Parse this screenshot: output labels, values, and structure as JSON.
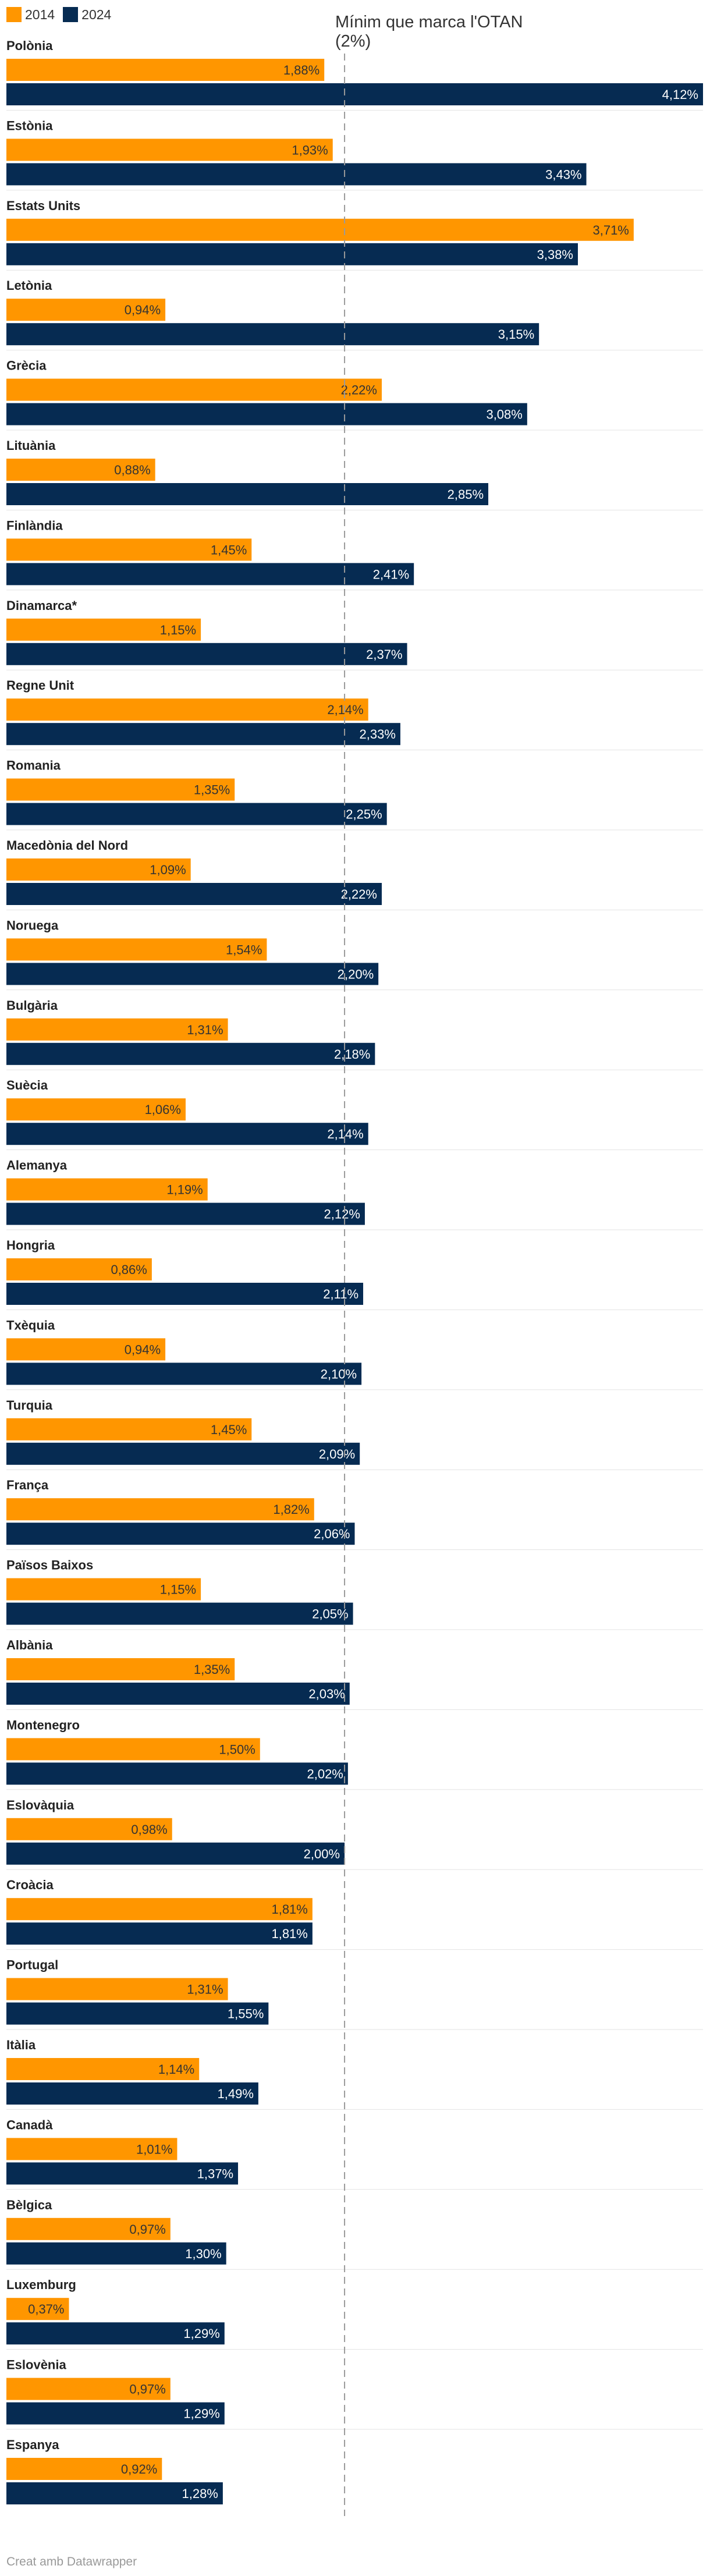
{
  "legend": [
    {
      "label": "2014",
      "color": "#ff9600"
    },
    {
      "label": "2024",
      "color": "#062b52"
    }
  ],
  "annotation": "Mínim que marca l'OTAN (2%)",
  "footer": "Creat amb Datawrapper",
  "chart_data": {
    "type": "bar",
    "orientation": "horizontal",
    "reference_line": {
      "value": 2.0,
      "label": "Mínim que marca l'OTAN (2%)",
      "style": "dashed"
    },
    "xlim": [
      0,
      4.12
    ],
    "grid": false,
    "legend_position": "top-left",
    "categories": [
      "Polònia",
      "Estònia",
      "Estats Units",
      "Letònia",
      "Grècia",
      "Lituània",
      "Finlàndia",
      "Dinamarca*",
      "Regne Unit",
      "Romania",
      "Macedònia del Nord",
      "Noruega",
      "Bulgària",
      "Suècia",
      "Alemanya",
      "Hongria",
      "Txèquia",
      "Turquia",
      "França",
      "Països Baixos",
      "Albània",
      "Montenegro",
      "Eslovàquia",
      "Croàcia",
      "Portugal",
      "Itàlia",
      "Canadà",
      "Bèlgica",
      "Luxemburg",
      "Eslovènia",
      "Espanya"
    ],
    "series": [
      {
        "name": "2014",
        "color": "#ff9600",
        "values": [
          1.88,
          1.93,
          3.71,
          0.94,
          2.22,
          0.88,
          1.45,
          1.15,
          2.14,
          1.35,
          1.09,
          1.54,
          1.31,
          1.06,
          1.19,
          0.86,
          0.94,
          1.45,
          1.82,
          1.15,
          1.35,
          1.5,
          0.98,
          1.81,
          1.31,
          1.14,
          1.01,
          0.97,
          0.37,
          0.97,
          0.92
        ],
        "labels": [
          "1,88%",
          "1,93%",
          "3,71%",
          "0,94%",
          "2,22%",
          "0,88%",
          "1,45%",
          "1,15%",
          "2,14%",
          "1,35%",
          "1,09%",
          "1,54%",
          "1,31%",
          "1,06%",
          "1,19%",
          "0,86%",
          "0,94%",
          "1,45%",
          "1,82%",
          "1,15%",
          "1,35%",
          "1,50%",
          "0,98%",
          "1,81%",
          "1,31%",
          "1,14%",
          "1,01%",
          "0,97%",
          "0,37%",
          "0,97%",
          "0,92%"
        ]
      },
      {
        "name": "2024",
        "color": "#062b52",
        "values": [
          4.12,
          3.43,
          3.38,
          3.15,
          3.08,
          2.85,
          2.41,
          2.37,
          2.33,
          2.25,
          2.22,
          2.2,
          2.18,
          2.14,
          2.12,
          2.11,
          2.1,
          2.09,
          2.06,
          2.05,
          2.03,
          2.02,
          2.0,
          1.81,
          1.55,
          1.49,
          1.37,
          1.3,
          1.29,
          1.29,
          1.28
        ],
        "labels": [
          "4,12%",
          "3,43%",
          "3,38%",
          "3,15%",
          "3,08%",
          "2,85%",
          "2,41%",
          "2,37%",
          "2,33%",
          "2,25%",
          "2,22%",
          "2,20%",
          "2,18%",
          "2,14%",
          "2,12%",
          "2,11%",
          "2,10%",
          "2,09%",
          "2,06%",
          "2,05%",
          "2,03%",
          "2,02%",
          "2,00%",
          "1,81%",
          "1,55%",
          "1,49%",
          "1,37%",
          "1,30%",
          "1,29%",
          "1,29%",
          "1,28%"
        ]
      }
    ]
  }
}
